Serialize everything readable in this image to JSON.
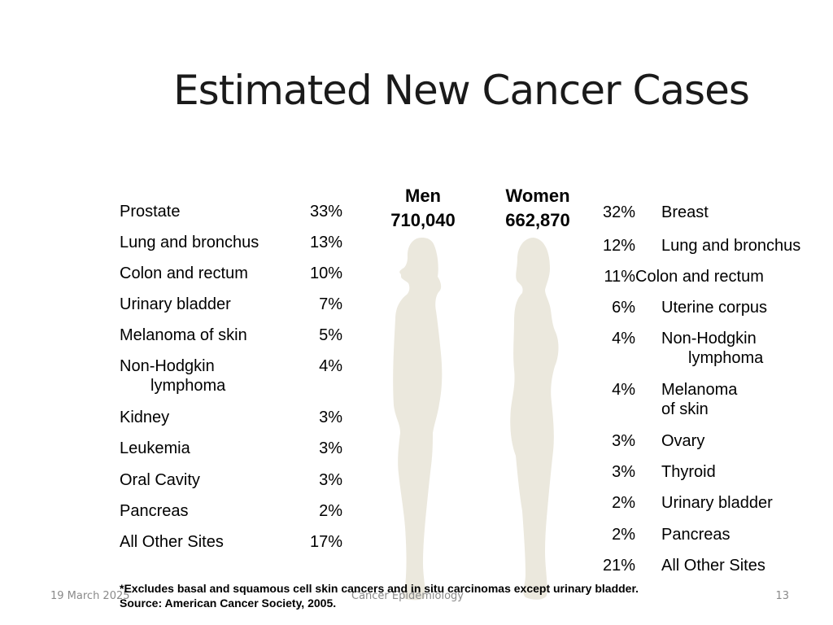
{
  "title": "Estimated New Cancer Cases",
  "men": {
    "header": "Men",
    "total": "710,040",
    "rows": [
      {
        "site": "Prostate",
        "sub": "",
        "pct": "33%"
      },
      {
        "site": "Lung and bronchus",
        "sub": "",
        "pct": "13%"
      },
      {
        "site": "Colon and rectum",
        "sub": "",
        "pct": "10%"
      },
      {
        "site": "Urinary bladder",
        "sub": "",
        "pct": "7%"
      },
      {
        "site": "Melanoma of skin",
        "sub": "",
        "pct": "5%"
      },
      {
        "site": "Non-Hodgkin",
        "sub": "lymphoma",
        "pct": "4%"
      },
      {
        "site": "Kidney",
        "sub": "",
        "pct": "3%"
      },
      {
        "site": "Leukemia",
        "sub": "",
        "pct": "3%"
      },
      {
        "site": "Oral Cavity",
        "sub": "",
        "pct": "3%"
      },
      {
        "site": "Pancreas",
        "sub": "",
        "pct": "2%"
      },
      {
        "site": "All Other Sites",
        "sub": "",
        "pct": "17%"
      }
    ]
  },
  "women": {
    "header": "Women",
    "total": "662,870",
    "rows": [
      {
        "pct": "32%",
        "site": "Breast",
        "sub": ""
      },
      {
        "pct": "12%",
        "site": "Lung and bronchus",
        "sub": ""
      },
      {
        "pct": "11%",
        "site": "Colon and rectum",
        "sub": ""
      },
      {
        "pct": "6%",
        "site": "Uterine corpus",
        "sub": ""
      },
      {
        "pct": "4%",
        "site": "Non-Hodgkin",
        "sub": "lymphoma"
      },
      {
        "pct": "4%",
        "site": "Melanoma",
        "sub": "of skin"
      },
      {
        "pct": "3%",
        "site": "Ovary",
        "sub": ""
      },
      {
        "pct": "3%",
        "site": "Thyroid",
        "sub": ""
      },
      {
        "pct": "2%",
        "site": "Urinary bladder",
        "sub": ""
      },
      {
        "pct": "2%",
        "site": "Pancreas",
        "sub": ""
      },
      {
        "pct": "21%",
        "site": "All Other Sites",
        "sub": ""
      }
    ]
  },
  "footnote": {
    "line1": "*Excludes basal and squamous cell skin cancers and in situ carcinomas except urinary bladder.",
    "line2": "Source: American Cancer Society, 2005."
  },
  "footer": {
    "date": "19 March 2025",
    "center": "Cancer Epidemiology",
    "page": "13"
  },
  "colors": {
    "silhouette": "#ebe8dd"
  }
}
